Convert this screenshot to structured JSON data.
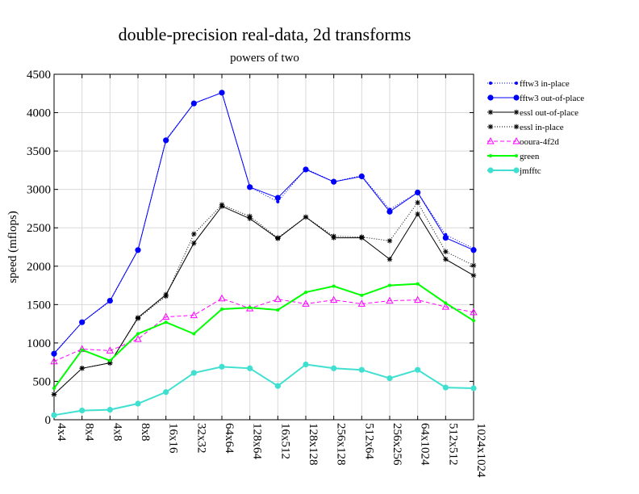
{
  "chart_data": {
    "type": "line",
    "title": "double-precision real-data, 2d transforms",
    "subtitle": "powers of two",
    "ylabel": "speed (mflops)",
    "xlabel": "",
    "ylim": [
      0,
      4500
    ],
    "yticks": [
      0,
      500,
      1000,
      1500,
      2000,
      2500,
      3000,
      3500,
      4000,
      4500
    ],
    "grid": true,
    "legend_position": "top-right",
    "categories": [
      "4x4",
      "8x4",
      "4x8",
      "8x8",
      "16x16",
      "32x32",
      "64x64",
      "128x64",
      "16x512",
      "128x128",
      "256x128",
      "512x64",
      "256x256",
      "64x1024",
      "512x512",
      "1024x1024"
    ],
    "series": [
      {
        "name": "fftw3 in-place",
        "color": "#0000ff",
        "dash": "dotted",
        "marker": "dot-small",
        "values": [
          870,
          1270,
          1540,
          2210,
          3650,
          4120,
          4260,
          3030,
          2840,
          3270,
          3100,
          3180,
          2740,
          2960,
          2410,
          2230
        ]
      },
      {
        "name": "fftw3 out-of-place",
        "color": "#0000ff",
        "dash": "solid",
        "marker": "dot-large",
        "values": [
          860,
          1270,
          1550,
          2210,
          3640,
          4120,
          4260,
          3030,
          2890,
          3260,
          3100,
          3170,
          2710,
          2960,
          2370,
          2210
        ]
      },
      {
        "name": "essl out-of-place",
        "color": "#000000",
        "dash": "solid",
        "marker": "star",
        "values": [
          330,
          670,
          740,
          1330,
          1630,
          2300,
          2780,
          2620,
          2360,
          2640,
          2370,
          2370,
          2090,
          2680,
          2090,
          1880
        ]
      },
      {
        "name": "essl in-place",
        "color": "#000000",
        "dash": "dotted",
        "marker": "star",
        "values": [
          330,
          670,
          740,
          1320,
          1610,
          2420,
          2800,
          2650,
          2370,
          2640,
          2390,
          2380,
          2330,
          2830,
          2190,
          2010
        ]
      },
      {
        "name": "ooura-4f2d",
        "color": "#ff00ff",
        "dash": "dashed",
        "marker": "triangle",
        "values": [
          760,
          920,
          900,
          1050,
          1340,
          1360,
          1580,
          1450,
          1570,
          1510,
          1560,
          1510,
          1550,
          1560,
          1470,
          1400
        ]
      },
      {
        "name": "green",
        "color": "#00ff00",
        "dash": "solid",
        "marker": "dot-small",
        "values": [
          410,
          910,
          770,
          1120,
          1270,
          1120,
          1440,
          1460,
          1430,
          1660,
          1740,
          1620,
          1750,
          1770,
          1520,
          1290
        ]
      },
      {
        "name": "jmfftc",
        "color": "#40e0d0",
        "dash": "solid",
        "marker": "dot-large",
        "values": [
          60,
          120,
          130,
          210,
          360,
          610,
          690,
          670,
          440,
          720,
          670,
          650,
          540,
          650,
          420,
          410
        ]
      }
    ]
  }
}
